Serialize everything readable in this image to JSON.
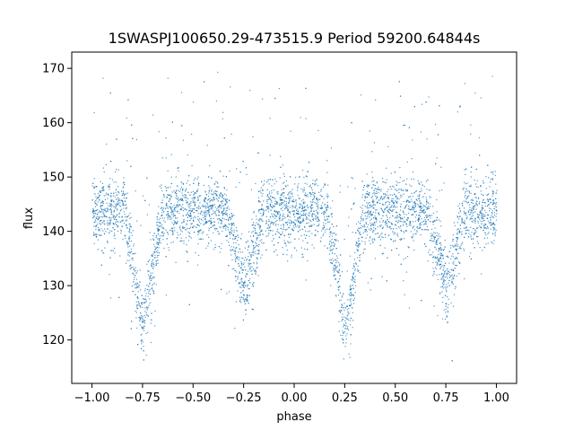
{
  "chart_data": {
    "type": "scatter",
    "title": "1SWASPJ100650.29-473515.9 Period 59200.64844s",
    "xlabel": "phase",
    "ylabel": "flux",
    "xlim": [
      -1.1,
      1.1
    ],
    "ylim": [
      112,
      173
    ],
    "xticks": [
      -1.0,
      -0.75,
      -0.5,
      -0.25,
      0.0,
      0.25,
      0.5,
      0.75,
      1.0
    ],
    "xtick_labels": [
      "−1.00",
      "−0.75",
      "−0.50",
      "−0.25",
      "0.00",
      "0.25",
      "0.50",
      "0.75",
      "1.00"
    ],
    "yticks": [
      120,
      130,
      140,
      150,
      160,
      170
    ],
    "ytick_labels": [
      "120",
      "130",
      "140",
      "150",
      "160",
      "170"
    ],
    "grid": false,
    "point_color": "#1f77b4",
    "light_curve": {
      "baseline_flux": 143.5,
      "scatter_sd": 3.2,
      "primary_minima_phase": [
        -0.75,
        0.25
      ],
      "primary_minimum_flux": 122,
      "secondary_minima_phase": [
        -0.25,
        0.75
      ],
      "secondary_minimum_flux": 129.5,
      "eclipse_half_width": 0.09
    }
  }
}
